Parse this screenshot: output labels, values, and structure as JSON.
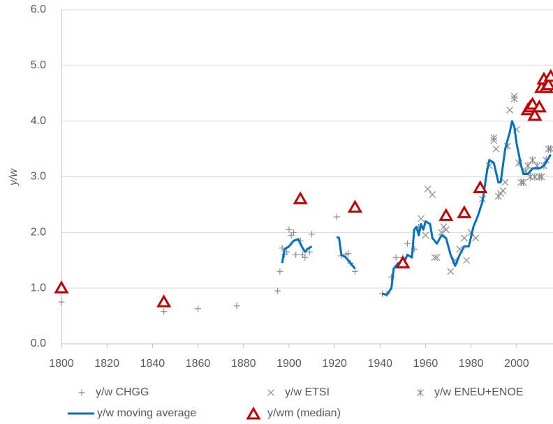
{
  "chart_data": {
    "type": "scatter",
    "y_label": "y/w",
    "xlim": [
      1800,
      2016
    ],
    "xticks": [
      1800,
      1820,
      1840,
      1860,
      1880,
      1900,
      1920,
      1940,
      1960,
      1980,
      2000
    ],
    "ylim": [
      0,
      6
    ],
    "yticks": [
      {
        "value": 0,
        "label": "0.0"
      },
      {
        "value": 1,
        "label": "1.0"
      },
      {
        "value": 2,
        "label": "2.0"
      },
      {
        "value": 3,
        "label": "3.0"
      },
      {
        "value": 4,
        "label": "4.0"
      },
      {
        "value": 5,
        "label": "5.0"
      },
      {
        "value": 6,
        "label": "6.0"
      }
    ],
    "grid": true,
    "legend": "bottom",
    "series": [
      {
        "name": "y/w CHGG",
        "color": "#8c8c8c",
        "marker": "plus",
        "x": [
          1800,
          1845,
          1860,
          1877,
          1895,
          1896,
          1897,
          1898,
          1899,
          1900,
          1901,
          1902,
          1903,
          1905,
          1906,
          1907,
          1909,
          1910,
          1921,
          1923,
          1925,
          1926,
          1927,
          1929,
          1941,
          1943,
          1945,
          1947,
          1950,
          1952,
          1955,
          1957
        ],
        "values": [
          0.75,
          0.58,
          0.63,
          0.68,
          0.95,
          1.3,
          1.72,
          1.6,
          1.65,
          2.05,
          1.95,
          2.0,
          1.6,
          1.85,
          1.6,
          1.55,
          1.65,
          1.97,
          2.28,
          1.58,
          1.6,
          1.62,
          1.45,
          1.3,
          0.9,
          0.9,
          1.2,
          1.55,
          1.55,
          1.8,
          1.7,
          2.1
        ]
      },
      {
        "name": "y/w ETSI",
        "color": "#8c8c8c",
        "marker": "x",
        "x": [
          1958,
          1960,
          1961,
          1963,
          1964,
          1965,
          1967,
          1968,
          1969,
          1971,
          1973,
          1975,
          1977,
          1978,
          1980,
          1982,
          1985,
          1988,
          1990,
          1991,
          1993,
          1994,
          1995,
          1997,
          1999,
          2000
        ],
        "values": [
          2.25,
          1.95,
          2.78,
          2.68,
          1.55,
          1.55,
          2.0,
          2.1,
          2.05,
          1.3,
          1.5,
          1.7,
          1.9,
          1.5,
          2.0,
          1.9,
          2.6,
          3.2,
          3.65,
          3.5,
          2.7,
          2.75,
          2.9,
          4.2,
          4.45,
          3.85
        ]
      },
      {
        "name": "y/w ENEU+ENOE",
        "color": "#8c8c8c",
        "marker": "asterisk",
        "x": [
          1990,
          1992,
          1996,
          1999,
          2001,
          2002,
          2003,
          2004,
          2005,
          2006,
          2007,
          2008,
          2009,
          2010,
          2011,
          2012,
          2013,
          2014,
          2015
        ],
        "values": [
          3.7,
          2.65,
          3.55,
          4.4,
          3.25,
          2.9,
          2.9,
          3.1,
          3.2,
          3.0,
          3.3,
          3.0,
          3.2,
          3.0,
          3.0,
          3.2,
          3.3,
          3.5,
          3.5
        ]
      },
      {
        "name": "y/w moving average",
        "color": "#0070c0",
        "marker": "line",
        "x": [
          1897,
          1898,
          1900,
          1902,
          1904,
          1906,
          1907,
          1908,
          1910,
          1915,
          1921,
          1922,
          1923,
          1925,
          1927,
          1929,
          1935,
          1941,
          1943,
          1945,
          1946,
          1948,
          1950,
          1952,
          1954,
          1955,
          1956,
          1957,
          1958,
          1959,
          1960,
          1962,
          1963,
          1965,
          1967,
          1969,
          1971,
          1973,
          1975,
          1977,
          1979,
          1981,
          1983,
          1985,
          1987,
          1988,
          1990,
          1992,
          1993,
          1995,
          1997,
          1998,
          1999,
          2000,
          2002,
          2003,
          2005,
          2007,
          2010,
          2012,
          2015
        ],
        "values": [
          1.45,
          1.7,
          1.75,
          1.85,
          1.88,
          1.72,
          1.65,
          1.7,
          1.75,
          null,
          1.92,
          1.9,
          1.6,
          1.55,
          1.45,
          1.35,
          null,
          0.9,
          0.88,
          1.0,
          1.35,
          1.45,
          1.4,
          1.6,
          1.55,
          2.05,
          2.1,
          1.95,
          2.15,
          2.05,
          2.2,
          2.15,
          1.9,
          1.8,
          1.95,
          1.9,
          1.6,
          1.4,
          1.6,
          1.75,
          1.75,
          2.1,
          2.3,
          2.55,
          3.1,
          3.3,
          3.25,
          2.9,
          2.9,
          3.5,
          3.8,
          4.0,
          3.9,
          3.6,
          3.2,
          3.05,
          3.05,
          3.15,
          3.15,
          3.2,
          3.4
        ]
      },
      {
        "name": "y/wm (median)",
        "color": "#c00000",
        "marker": "triangle",
        "x": [
          1800,
          1845,
          1905,
          1929,
          1950,
          1969,
          1977,
          1984,
          2005,
          2006,
          2007,
          2008,
          2010,
          2011,
          2012,
          2013,
          2014,
          2015
        ],
        "values": [
          1.0,
          0.75,
          2.6,
          2.45,
          1.45,
          2.3,
          2.35,
          2.8,
          4.2,
          4.25,
          4.3,
          4.1,
          4.25,
          4.6,
          4.75,
          4.6,
          4.65,
          4.8
        ]
      }
    ]
  }
}
